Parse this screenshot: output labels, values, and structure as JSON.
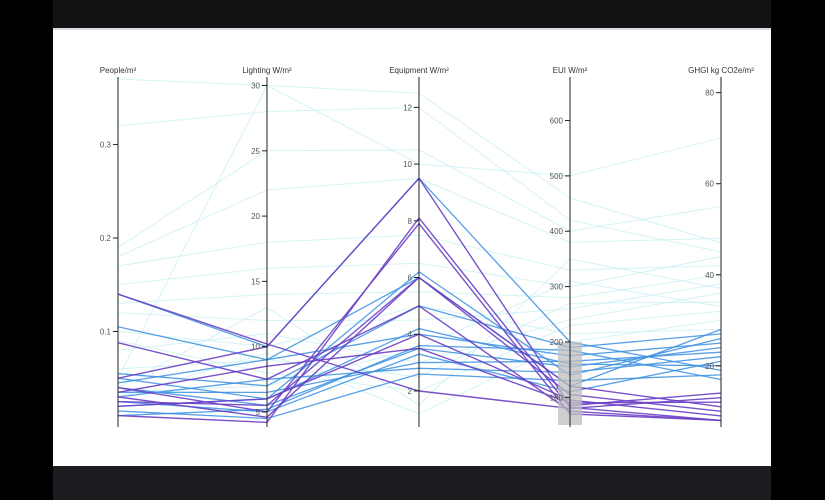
{
  "colors": {
    "background": "#000000",
    "panel": "#ffffff",
    "axis": "#222222",
    "brush": "#bdbdbd",
    "line_light": "#c9f0f2",
    "line_mid": "#3b8fe0",
    "line_dark": "#6a3fc4"
  },
  "chart_data": {
    "type": "parallel_coordinates",
    "axes": [
      {
        "name": "People/m²",
        "range": [
          0,
          0.37
        ],
        "ticks": [
          0.1,
          0.2,
          0.3
        ],
        "tick_labels": [
          "0.1",
          "0.2",
          "0.3"
        ]
      },
      {
        "name": "Lighting W/m²",
        "range": [
          4,
          30.5
        ],
        "ticks": [
          5,
          10,
          15,
          20,
          25,
          30
        ],
        "tick_labels": [
          "5",
          "10",
          "15",
          "20",
          "25",
          "30"
        ]
      },
      {
        "name": "Equipment W/m²",
        "range": [
          0.8,
          13
        ],
        "ticks": [
          2,
          4,
          6,
          8,
          10,
          12
        ],
        "tick_labels": [
          "2",
          "4",
          "6",
          "8",
          "10",
          "12"
        ]
      },
      {
        "name": "EUI W/m²",
        "range": [
          50,
          675
        ],
        "ticks": [
          100,
          200,
          300,
          400,
          500,
          600
        ],
        "tick_labels": [
          "100",
          "200",
          "300",
          "400",
          "500",
          "600"
        ]
      },
      {
        "name": "GHGI kg CO2e/m²",
        "range": [
          7,
          83
        ],
        "ticks": [
          20,
          40,
          60,
          80
        ],
        "tick_labels": [
          "20",
          "40",
          "60",
          "80"
        ]
      }
    ],
    "brush": {
      "axis": "EUI W/m²",
      "range": [
        50,
        200
      ]
    },
    "series": [
      {
        "values": [
          0.37,
          30.0,
          12.5,
          460,
          47
        ],
        "group": "light"
      },
      {
        "values": [
          0.32,
          28.0,
          12.0,
          420,
          45
        ],
        "group": "light"
      },
      {
        "values": [
          0.19,
          25.0,
          10.5,
          400,
          55
        ],
        "group": "light"
      },
      {
        "values": [
          0.18,
          22.0,
          9.5,
          380,
          48
        ],
        "group": "light"
      },
      {
        "values": [
          0.17,
          18.0,
          7.5,
          330,
          42
        ],
        "group": "light"
      },
      {
        "values": [
          0.15,
          16.0,
          6.5,
          300,
          44
        ],
        "group": "light"
      },
      {
        "values": [
          0.13,
          14.0,
          5.5,
          280,
          40
        ],
        "group": "light"
      },
      {
        "values": [
          0.12,
          12.0,
          4.5,
          260,
          38
        ],
        "group": "light"
      },
      {
        "values": [
          0.08,
          11.0,
          3.0,
          240,
          36
        ],
        "group": "light"
      },
      {
        "values": [
          0.06,
          9.0,
          2.5,
          270,
          34
        ],
        "group": "light"
      },
      {
        "values": [
          0.05,
          30.0,
          10.0,
          500,
          70
        ],
        "group": "light"
      },
      {
        "values": [
          0.04,
          13.0,
          1.5,
          350,
          37
        ],
        "group": "light"
      },
      {
        "values": [
          0.035,
          7.0,
          3.5,
          310,
          33
        ],
        "group": "light"
      },
      {
        "values": [
          0.03,
          9.5,
          1.2,
          200,
          30
        ],
        "group": "light"
      },
      {
        "values": [
          0.1,
          10.0,
          5.0,
          215,
          28
        ],
        "group": "light"
      },
      {
        "values": [
          0.09,
          8.0,
          2.0,
          230,
          32
        ],
        "group": "light"
      },
      {
        "values": [
          0.14,
          10.0,
          9.5,
          200,
          19
        ],
        "group": "mid"
      },
      {
        "values": [
          0.105,
          9.0,
          6.0,
          120,
          28
        ],
        "group": "mid"
      },
      {
        "values": [
          0.055,
          7.0,
          5.0,
          190,
          27
        ],
        "group": "mid"
      },
      {
        "values": [
          0.05,
          6.0,
          6.2,
          140,
          26
        ],
        "group": "mid"
      },
      {
        "values": [
          0.045,
          9.0,
          4.0,
          175,
          25
        ],
        "group": "mid"
      },
      {
        "values": [
          0.04,
          5.5,
          3.5,
          155,
          24
        ],
        "group": "mid"
      },
      {
        "values": [
          0.035,
          6.5,
          3.0,
          165,
          23
        ],
        "group": "mid"
      },
      {
        "values": [
          0.03,
          7.5,
          2.8,
          145,
          22
        ],
        "group": "mid"
      },
      {
        "values": [
          0.025,
          5.0,
          3.3,
          110,
          21
        ],
        "group": "mid"
      },
      {
        "values": [
          0.02,
          6.0,
          4.2,
          160,
          20
        ],
        "group": "mid"
      },
      {
        "values": [
          0.015,
          4.5,
          2.6,
          130,
          18
        ],
        "group": "mid"
      },
      {
        "values": [
          0.01,
          5.2,
          3.6,
          185,
          17
        ],
        "group": "mid"
      },
      {
        "values": [
          0.14,
          10.2,
          2.0,
          80,
          13
        ],
        "group": "dark"
      },
      {
        "values": [
          0.088,
          7.5,
          5.0,
          75,
          8
        ],
        "group": "dark"
      },
      {
        "values": [
          0.05,
          10.0,
          9.5,
          85,
          14
        ],
        "group": "dark"
      },
      {
        "values": [
          0.04,
          5.0,
          7.9,
          70,
          8
        ],
        "group": "dark"
      },
      {
        "values": [
          0.03,
          4.6,
          6.0,
          120,
          11
        ],
        "group": "dark"
      },
      {
        "values": [
          0.02,
          6.0,
          4.0,
          95,
          9
        ],
        "group": "dark"
      },
      {
        "values": [
          0.01,
          4.2,
          8.1,
          82,
          8
        ],
        "group": "dark"
      },
      {
        "values": [
          0.025,
          5.5,
          6.0,
          105,
          10
        ],
        "group": "dark"
      },
      {
        "values": [
          0.035,
          8.5,
          3.5,
          90,
          12
        ],
        "group": "dark"
      }
    ]
  }
}
